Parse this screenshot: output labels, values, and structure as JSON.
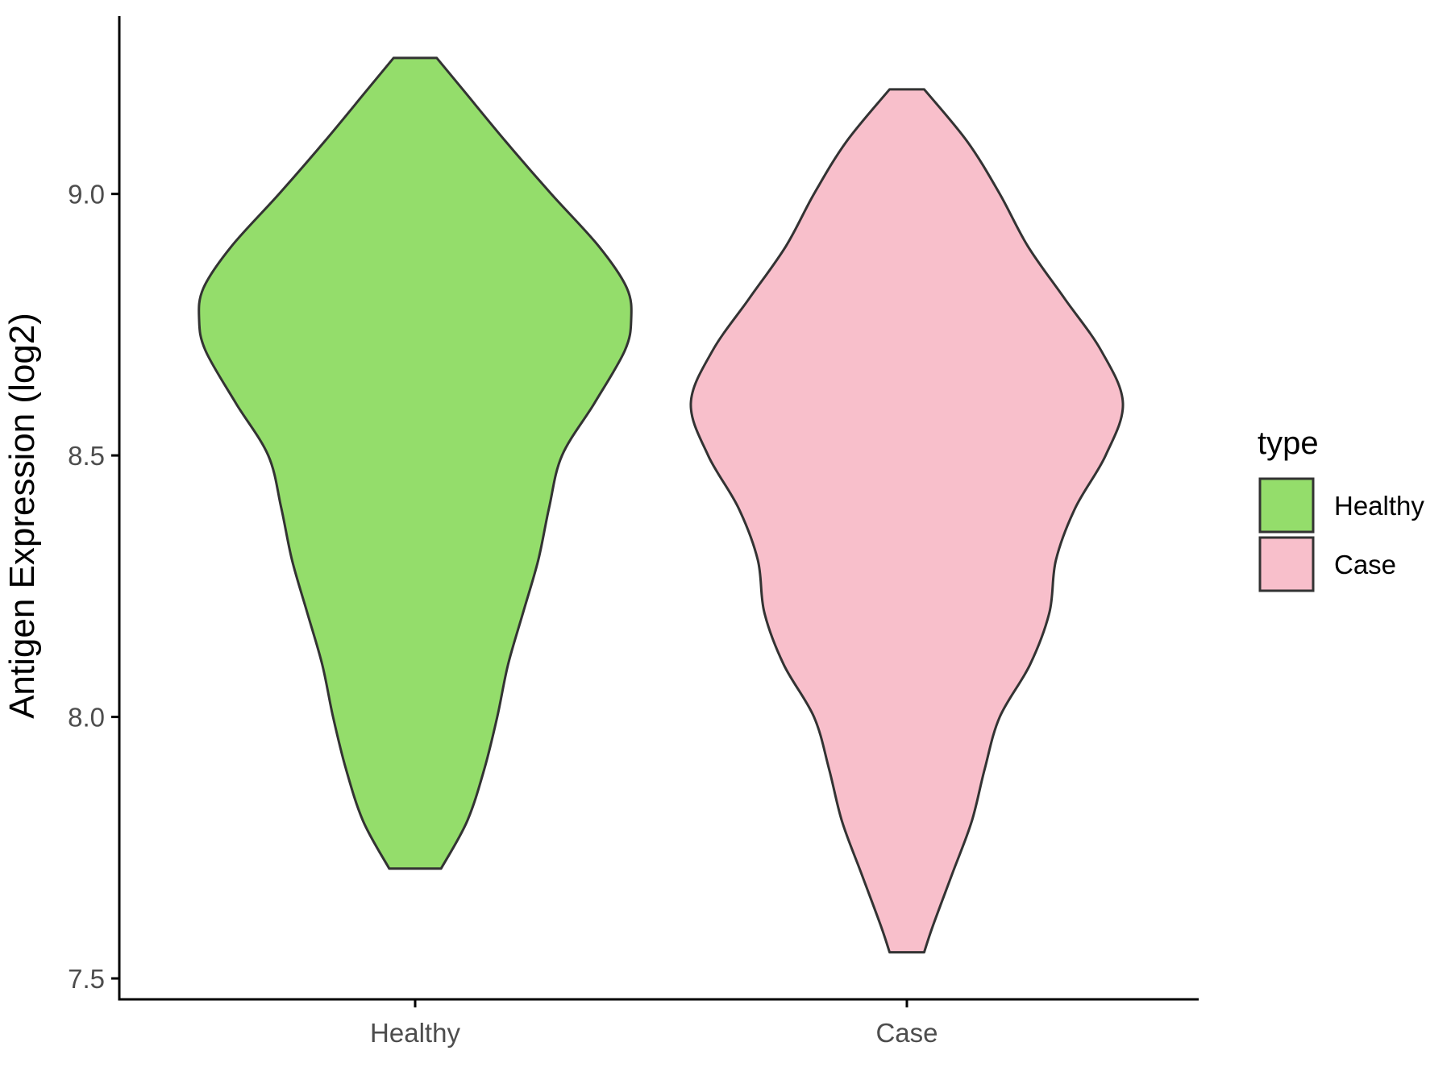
{
  "chart_data": {
    "type": "violin",
    "title": "",
    "xlabel": "",
    "ylabel": "Antigen Expression (log2)",
    "categories": [
      "Healthy",
      "Case"
    ],
    "ylim": [
      7.46,
      9.34
    ],
    "yticks": [
      "7.5",
      "8.0",
      "8.5",
      "9.0"
    ],
    "grid": false,
    "legend": {
      "title": "type",
      "position": "right",
      "entries": [
        "Healthy",
        "Case"
      ]
    },
    "series": [
      {
        "name": "Healthy",
        "color": "#94dd6b",
        "min": 7.71,
        "max": 9.26,
        "density_profile": [
          [
            9.26,
            0.1
          ],
          [
            9.2,
            0.22
          ],
          [
            9.1,
            0.42
          ],
          [
            9.0,
            0.63
          ],
          [
            8.9,
            0.85
          ],
          [
            8.82,
            0.98
          ],
          [
            8.76,
            1.0
          ],
          [
            8.7,
            0.97
          ],
          [
            8.6,
            0.83
          ],
          [
            8.5,
            0.68
          ],
          [
            8.4,
            0.62
          ],
          [
            8.3,
            0.57
          ],
          [
            8.2,
            0.5
          ],
          [
            8.1,
            0.43
          ],
          [
            8.0,
            0.38
          ],
          [
            7.9,
            0.32
          ],
          [
            7.8,
            0.24
          ],
          [
            7.71,
            0.12
          ]
        ]
      },
      {
        "name": "Case",
        "color": "#f8bfcb",
        "min": 7.55,
        "max": 9.2,
        "density_profile": [
          [
            9.2,
            0.08
          ],
          [
            9.1,
            0.28
          ],
          [
            9.0,
            0.43
          ],
          [
            8.9,
            0.56
          ],
          [
            8.8,
            0.73
          ],
          [
            8.7,
            0.9
          ],
          [
            8.6,
            1.0
          ],
          [
            8.5,
            0.92
          ],
          [
            8.4,
            0.78
          ],
          [
            8.3,
            0.69
          ],
          [
            8.2,
            0.66
          ],
          [
            8.1,
            0.57
          ],
          [
            8.0,
            0.43
          ],
          [
            7.9,
            0.36
          ],
          [
            7.8,
            0.3
          ],
          [
            7.7,
            0.21
          ],
          [
            7.6,
            0.12
          ],
          [
            7.55,
            0.08
          ]
        ]
      }
    ]
  }
}
